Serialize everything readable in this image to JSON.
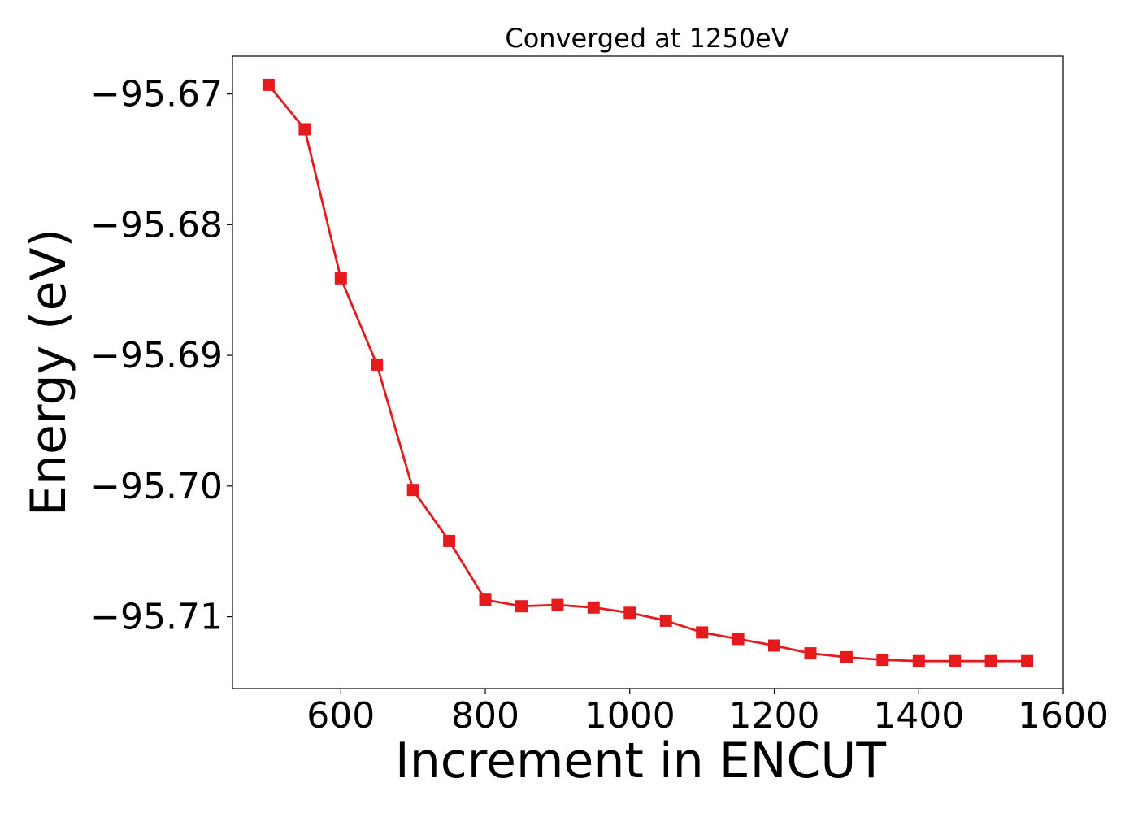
{
  "chart_data": {
    "type": "line",
    "title": "Converged at 1250eV",
    "xlabel": "Increment in ENCUT",
    "ylabel": "Energy (eV)",
    "xlim": [
      450,
      1600
    ],
    "ylim": [
      -95.7155,
      -95.6671
    ],
    "grid": false,
    "legend": "none",
    "x_ticks": [
      600,
      800,
      1000,
      1200,
      1400,
      1600
    ],
    "x_tick_labels": [
      "600",
      "800",
      "1000",
      "1200",
      "1400",
      "1600"
    ],
    "y_ticks": [
      -95.67,
      -95.68,
      -95.69,
      -95.7,
      -95.71
    ],
    "y_tick_labels": [
      "−95.67",
      "−95.68",
      "−95.69",
      "−95.70",
      "−95.71"
    ],
    "series": [
      {
        "color": "#e41a1c",
        "marker": "square",
        "x": [
          500,
          550,
          600,
          650,
          700,
          750,
          800,
          850,
          900,
          950,
          1000,
          1050,
          1100,
          1150,
          1200,
          1250,
          1300,
          1350,
          1400,
          1450,
          1500,
          1550
        ],
        "values": [
          -95.6693,
          -95.6727,
          -95.6841,
          -95.6907,
          -95.7003,
          -95.7042,
          -95.7087,
          -95.7092,
          -95.7091,
          -95.7093,
          -95.7097,
          -95.7103,
          -95.7112,
          -95.7117,
          -95.7122,
          -95.7128,
          -95.7131,
          -95.7133,
          -95.7134,
          -95.7134,
          -95.7134,
          -95.7134
        ]
      }
    ]
  }
}
